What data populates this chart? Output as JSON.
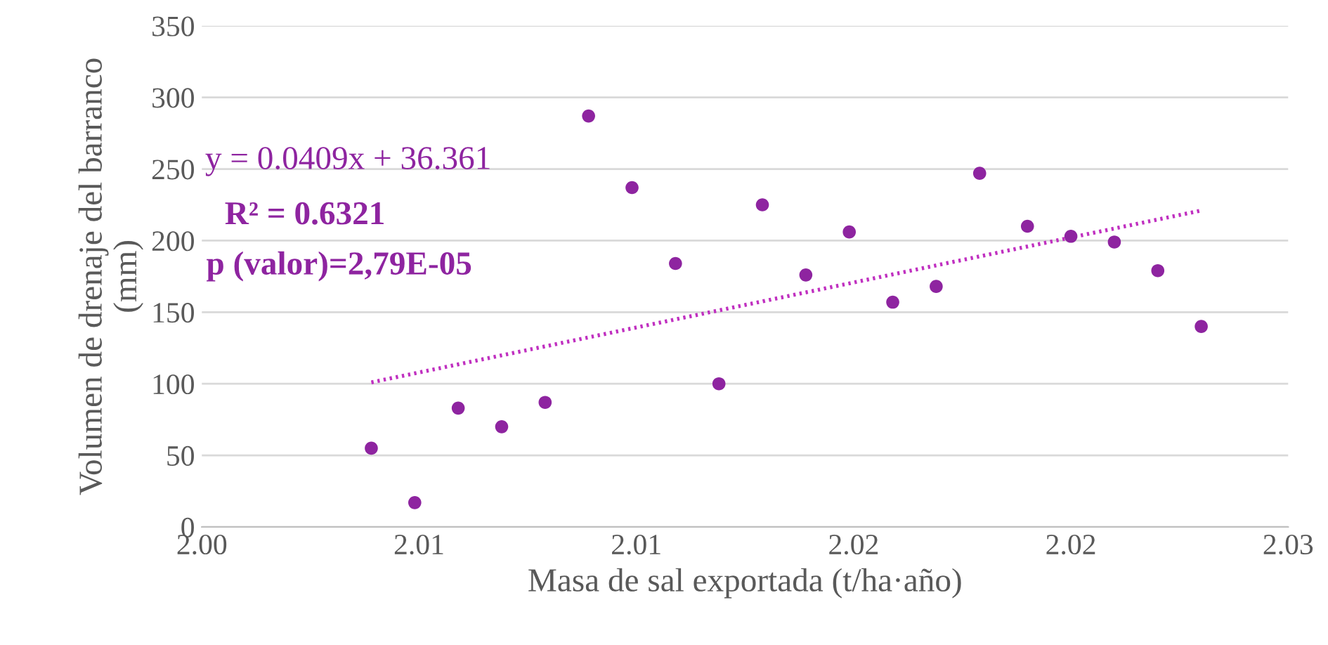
{
  "chart_data": {
    "type": "scatter",
    "xlabel": "Masa de sal exportada (t/ha·año)",
    "ylabel": "Volumen de drenaje del barranco\n(mm)",
    "xlim": [
      2.0,
      2.025
    ],
    "xticks": [
      {
        "value": 2.0,
        "label": "2.00"
      },
      {
        "value": 2.005,
        "label": "2.01"
      },
      {
        "value": 2.01,
        "label": "2.01"
      },
      {
        "value": 2.015,
        "label": "2.02"
      },
      {
        "value": 2.02,
        "label": "2.02"
      },
      {
        "value": 2.025,
        "label": "2.03"
      }
    ],
    "ylim": [
      0,
      350
    ],
    "yticks": [
      0,
      50,
      100,
      150,
      200,
      250,
      300,
      350
    ],
    "grid": "y",
    "series": [
      {
        "marker": "circle",
        "color": "#8e24a0",
        "x": [
          2.0039,
          2.0049,
          2.0059,
          2.0069,
          2.0079,
          2.0089,
          2.0099,
          2.0109,
          2.0119,
          2.0129,
          2.0139,
          2.0149,
          2.0159,
          2.0169,
          2.0179,
          2.019,
          2.02,
          2.021,
          2.022,
          2.023
        ],
        "values": [
          55,
          17,
          83,
          70,
          87,
          287,
          237,
          184,
          100,
          225,
          176,
          206,
          157,
          168,
          247,
          210,
          203,
          199,
          179,
          140
        ]
      },
      {
        "type": "line",
        "color": "#c030c0",
        "line_style": "dotted",
        "x": [
          2.0039,
          2.023
        ],
        "values": [
          101,
          221
        ]
      }
    ],
    "annotations": [
      "y = 0.0409x + 36.361",
      "R² = 0.6321",
      "p (valor)=2,79E-05"
    ]
  }
}
